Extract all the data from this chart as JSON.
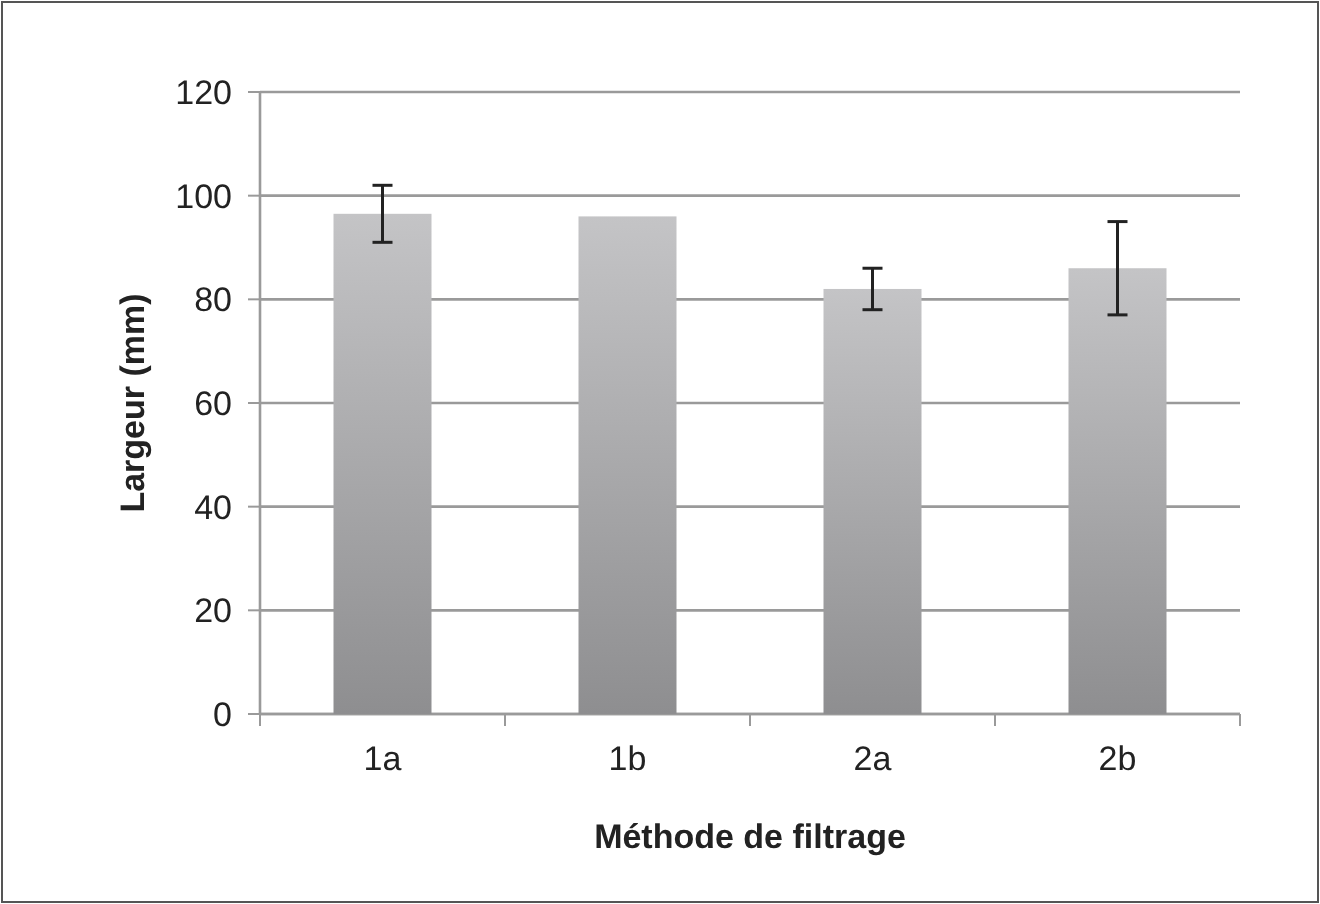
{
  "chart_data": {
    "type": "bar",
    "xlabel": "Méthode de filtrage",
    "ylabel": "Largeur (mm)",
    "categories": [
      "1a",
      "1b",
      "2a",
      "2b"
    ],
    "values": [
      96.5,
      96,
      82,
      86
    ],
    "errors": [
      [
        91,
        102
      ],
      null,
      [
        78,
        86
      ],
      [
        77,
        95
      ]
    ],
    "color": "#c4c4c6",
    "ylim": [
      0,
      120
    ],
    "yticks": [
      0,
      20,
      40,
      60,
      80,
      100,
      120
    ],
    "grid": "y"
  }
}
